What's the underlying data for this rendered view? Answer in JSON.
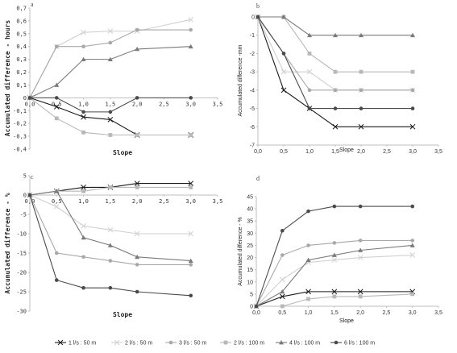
{
  "legend": [
    {
      "name": "1 l/s : 50 m",
      "color": "#1a1a1a",
      "marker": "x"
    },
    {
      "name": "2 l/s : 50 m",
      "color": "#d0d0d0",
      "marker": "x"
    },
    {
      "name": "3 l/s : 50 m",
      "color": "#a8a8a8",
      "marker": "circle"
    },
    {
      "name": "2 l/s : 100 m",
      "color": "#b8b8b8",
      "marker": "square"
    },
    {
      "name": "4 l/s : 100 m",
      "color": "#7a7a7a",
      "marker": "triangle"
    },
    {
      "name": "6 l/s : 100 m",
      "color": "#4a4a4a",
      "marker": "circle"
    }
  ],
  "chart_data": [
    {
      "type": "line",
      "panel": "a",
      "xlabel": "Slope",
      "ylabel": "Accumulated difference - hours",
      "xlim": [
        0,
        3.5
      ],
      "ylim": [
        -0.4,
        0.7
      ],
      "xticks": [
        "0,0",
        "0,5",
        "1,0",
        "1,5",
        "2,0",
        "2,5",
        "3,0",
        "3,5"
      ],
      "yticks": [
        "-0,4",
        "-0,3",
        "-0,2",
        "-0,1",
        "0",
        "0,1",
        "0,2",
        "0,3",
        "0,4",
        "0,5",
        "0,6",
        "0,7"
      ],
      "x": [
        0,
        0.5,
        1.0,
        1.5,
        2.0,
        3.0
      ],
      "series": [
        {
          "name": "1 l/s : 50 m",
          "values": [
            0,
            -0.07,
            -0.15,
            -0.17,
            -0.29,
            -0.29
          ]
        },
        {
          "name": "2 l/s : 50 m",
          "values": [
            0,
            0.4,
            0.51,
            0.52,
            0.52,
            0.61
          ]
        },
        {
          "name": "3 l/s : 50 m",
          "values": [
            0,
            0.4,
            0.4,
            0.43,
            0.53,
            0.53
          ]
        },
        {
          "name": "2 l/s : 100 m",
          "values": [
            0,
            -0.16,
            -0.27,
            -0.29,
            -0.29,
            -0.29
          ]
        },
        {
          "name": "4 l/s : 100 m",
          "values": [
            0,
            0.1,
            0.3,
            0.3,
            0.38,
            0.4
          ]
        },
        {
          "name": "6 l/s : 100 m",
          "values": [
            0,
            0,
            -0.11,
            -0.11,
            0,
            0
          ]
        }
      ]
    },
    {
      "type": "line",
      "panel": "b",
      "xlabel": "Slope",
      "ylabel": "Accumulated difference -mm",
      "xlim": [
        0,
        3.5
      ],
      "ylim": [
        -7,
        0
      ],
      "xticks": [
        "0,0",
        "0,5",
        "1,0",
        "1,5",
        "2,0",
        "2,5",
        "3,0",
        "3,5"
      ],
      "yticks": [
        "-7",
        "-6",
        "-5",
        "-4",
        "-3",
        "-2",
        "-1",
        "0"
      ],
      "x": [
        0,
        0.5,
        1.0,
        1.5,
        2.0,
        3.0
      ],
      "series": [
        {
          "name": "1 l/s : 50 m",
          "values": [
            0,
            -4,
            -5,
            -6,
            -6,
            -6
          ]
        },
        {
          "name": "2 l/s : 50 m",
          "values": [
            0,
            -3,
            -3,
            -4,
            -4,
            -4
          ]
        },
        {
          "name": "3 l/s : 50 m",
          "values": [
            0,
            -2,
            -4,
            -4,
            -4,
            -4
          ]
        },
        {
          "name": "2 l/s : 100 m",
          "values": [
            0,
            0,
            -2,
            -3,
            -3,
            -3
          ]
        },
        {
          "name": "4 l/s : 100 m",
          "values": [
            0,
            0,
            -1,
            -1,
            -1,
            -1
          ]
        },
        {
          "name": "6 l/s : 100 m",
          "values": [
            0,
            -2,
            -5,
            -5,
            -5,
            -5
          ]
        }
      ]
    },
    {
      "type": "line",
      "panel": "c",
      "xlabel": "Slope",
      "ylabel": "Accumulated difference - %",
      "xlim": [
        0,
        3.5
      ],
      "ylim": [
        -30,
        5
      ],
      "xticks": [
        "0,0",
        "0,5",
        "1,0",
        "1,5",
        "2,0",
        "2,5",
        "3,0",
        "3,5"
      ],
      "yticks": [
        "-30",
        "-25",
        "-20",
        "-15",
        "-10",
        "-5",
        "0",
        "5"
      ],
      "x": [
        0,
        0.5,
        1.0,
        1.5,
        2.0,
        3.0
      ],
      "series": [
        {
          "name": "1 l/s : 50 m",
          "values": [
            0,
            1,
            2,
            2,
            3,
            3
          ]
        },
        {
          "name": "2 l/s : 50 m",
          "values": [
            0,
            -3,
            -8,
            -9,
            -10,
            -10
          ]
        },
        {
          "name": "3 l/s : 50 m",
          "values": [
            0,
            -15,
            -16,
            -17,
            -18,
            -18
          ]
        },
        {
          "name": "2 l/s : 100 m",
          "values": [
            0,
            1,
            1,
            2,
            2,
            2
          ]
        },
        {
          "name": "4 l/s : 100 m",
          "values": [
            0,
            1,
            -11,
            -13,
            -16,
            -17
          ]
        },
        {
          "name": "6 l/s : 100 m",
          "values": [
            0,
            -22,
            -24,
            -24,
            -25,
            -26
          ]
        }
      ]
    },
    {
      "type": "line",
      "panel": "d",
      "xlabel": "Slope",
      "ylabel": "Accumulated difference - %",
      "xlim": [
        0,
        3.5
      ],
      "ylim": [
        0,
        45
      ],
      "xticks": [
        "0,0",
        "0,5",
        "1,0",
        "1,5",
        "2,0",
        "2,5",
        "3,0",
        "3,5"
      ],
      "yticks": [
        "0",
        "5",
        "10",
        "15",
        "20",
        "25",
        "30",
        "35",
        "40",
        "45"
      ],
      "x": [
        0,
        0.5,
        1.0,
        1.5,
        2.0,
        3.0
      ],
      "series": [
        {
          "name": "1 l/s : 50 m",
          "values": [
            0,
            4,
            6,
            6,
            6,
            6
          ]
        },
        {
          "name": "2 l/s : 50 m",
          "values": [
            0,
            11,
            18,
            19,
            20,
            21
          ]
        },
        {
          "name": "3 l/s : 50 m",
          "values": [
            0,
            21,
            25,
            26,
            27,
            27
          ]
        },
        {
          "name": "2 l/s : 100 m",
          "values": [
            0,
            0,
            3,
            4,
            4,
            5
          ]
        },
        {
          "name": "4 l/s : 100 m",
          "values": [
            0,
            6,
            19,
            21,
            23,
            25
          ]
        },
        {
          "name": "6 l/s : 100 m",
          "values": [
            0,
            31,
            39,
            41,
            41,
            41
          ]
        }
      ]
    }
  ]
}
